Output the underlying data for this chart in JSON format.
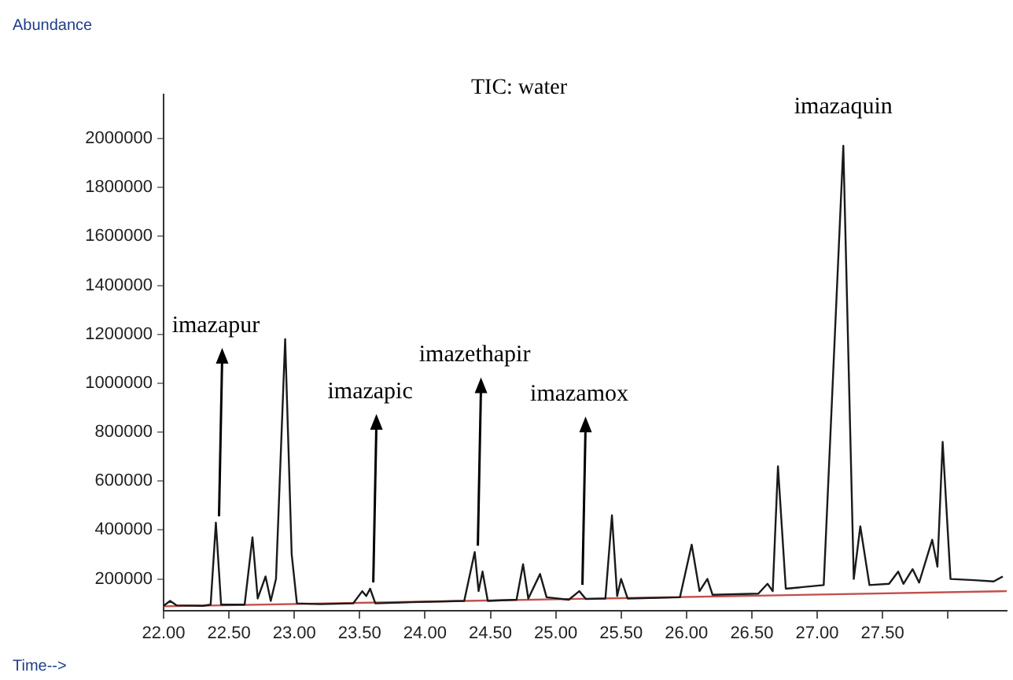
{
  "chart_data": {
    "type": "line",
    "title": "TIC: water",
    "xlabel": "Time-->",
    "ylabel": "Abundance",
    "xlim": [
      22,
      28.45
    ],
    "ylim": [
      70000,
      2180000
    ],
    "xticks": [
      {
        "value": 22,
        "label": "22.00"
      },
      {
        "value": 22.5,
        "label": "22.50"
      },
      {
        "value": 23,
        "label": "23.00"
      },
      {
        "value": 23.5,
        "label": "23.50"
      },
      {
        "value": 24,
        "label": "24.00"
      },
      {
        "value": 24.5,
        "label": "24.50"
      },
      {
        "value": 25,
        "label": "25.00"
      },
      {
        "value": 25.5,
        "label": "25.50"
      },
      {
        "value": 26,
        "label": "26.00"
      },
      {
        "value": 26.5,
        "label": "26.50"
      },
      {
        "value": 27,
        "label": "27.00"
      },
      {
        "value": 27.5,
        "label": "27.50"
      },
      {
        "value": 28,
        "label": null
      }
    ],
    "yticks": [
      200000,
      400000,
      600000,
      800000,
      1000000,
      1200000,
      1400000,
      1600000,
      1800000,
      2000000
    ],
    "grid": false,
    "legend": false,
    "marker": "none",
    "line_style": "solid",
    "annotations": [
      {
        "text": "imazapur",
        "x": 22.4,
        "y": 430000
      },
      {
        "text": "imazapic",
        "x": 23.58,
        "y": 160000
      },
      {
        "text": "imazethapir",
        "x": 24.38,
        "y": 310000
      },
      {
        "text": "imazamox",
        "x": 25.18,
        "y": 150000
      },
      {
        "text": "imazaquin",
        "x": 27.2,
        "y": 1970000
      }
    ],
    "series": [
      {
        "color": "#1a1a1a",
        "x": [
          22.0,
          22.05,
          22.1,
          22.3,
          22.36,
          22.4,
          22.44,
          22.62,
          22.68,
          22.72,
          22.78,
          22.82,
          22.86,
          22.93,
          22.98,
          23.02,
          23.2,
          23.45,
          23.52,
          23.55,
          23.58,
          23.62,
          23.9,
          24.3,
          24.38,
          24.41,
          24.44,
          24.48,
          24.7,
          24.75,
          24.79,
          24.88,
          24.93,
          25.1,
          25.18,
          25.23,
          25.38,
          25.43,
          25.47,
          25.5,
          25.55,
          25.95,
          26.04,
          26.1,
          26.16,
          26.2,
          26.55,
          26.62,
          26.66,
          26.7,
          26.76,
          27.05,
          27.2,
          27.28,
          27.33,
          27.4,
          27.55,
          27.62,
          27.66,
          27.73,
          27.78,
          27.88,
          27.92,
          27.96,
          28.02,
          28.2,
          28.35,
          28.42
        ],
        "values": [
          90000,
          110000,
          92000,
          90000,
          95000,
          430000,
          95000,
          95000,
          370000,
          120000,
          210000,
          110000,
          200000,
          1180000,
          300000,
          100000,
          97000,
          100000,
          150000,
          130000,
          160000,
          100000,
          105000,
          110000,
          310000,
          150000,
          230000,
          110000,
          115000,
          260000,
          120000,
          220000,
          125000,
          115000,
          150000,
          118000,
          120000,
          460000,
          130000,
          200000,
          120000,
          125000,
          340000,
          150000,
          200000,
          135000,
          140000,
          180000,
          150000,
          660000,
          160000,
          175000,
          1970000,
          200000,
          415000,
          175000,
          180000,
          230000,
          180000,
          240000,
          185000,
          360000,
          250000,
          760000,
          200000,
          195000,
          190000,
          210000
        ]
      },
      {
        "color": "#c0504d",
        "x": [
          22.0,
          28.45
        ],
        "values": [
          88000,
          150000
        ]
      }
    ]
  }
}
